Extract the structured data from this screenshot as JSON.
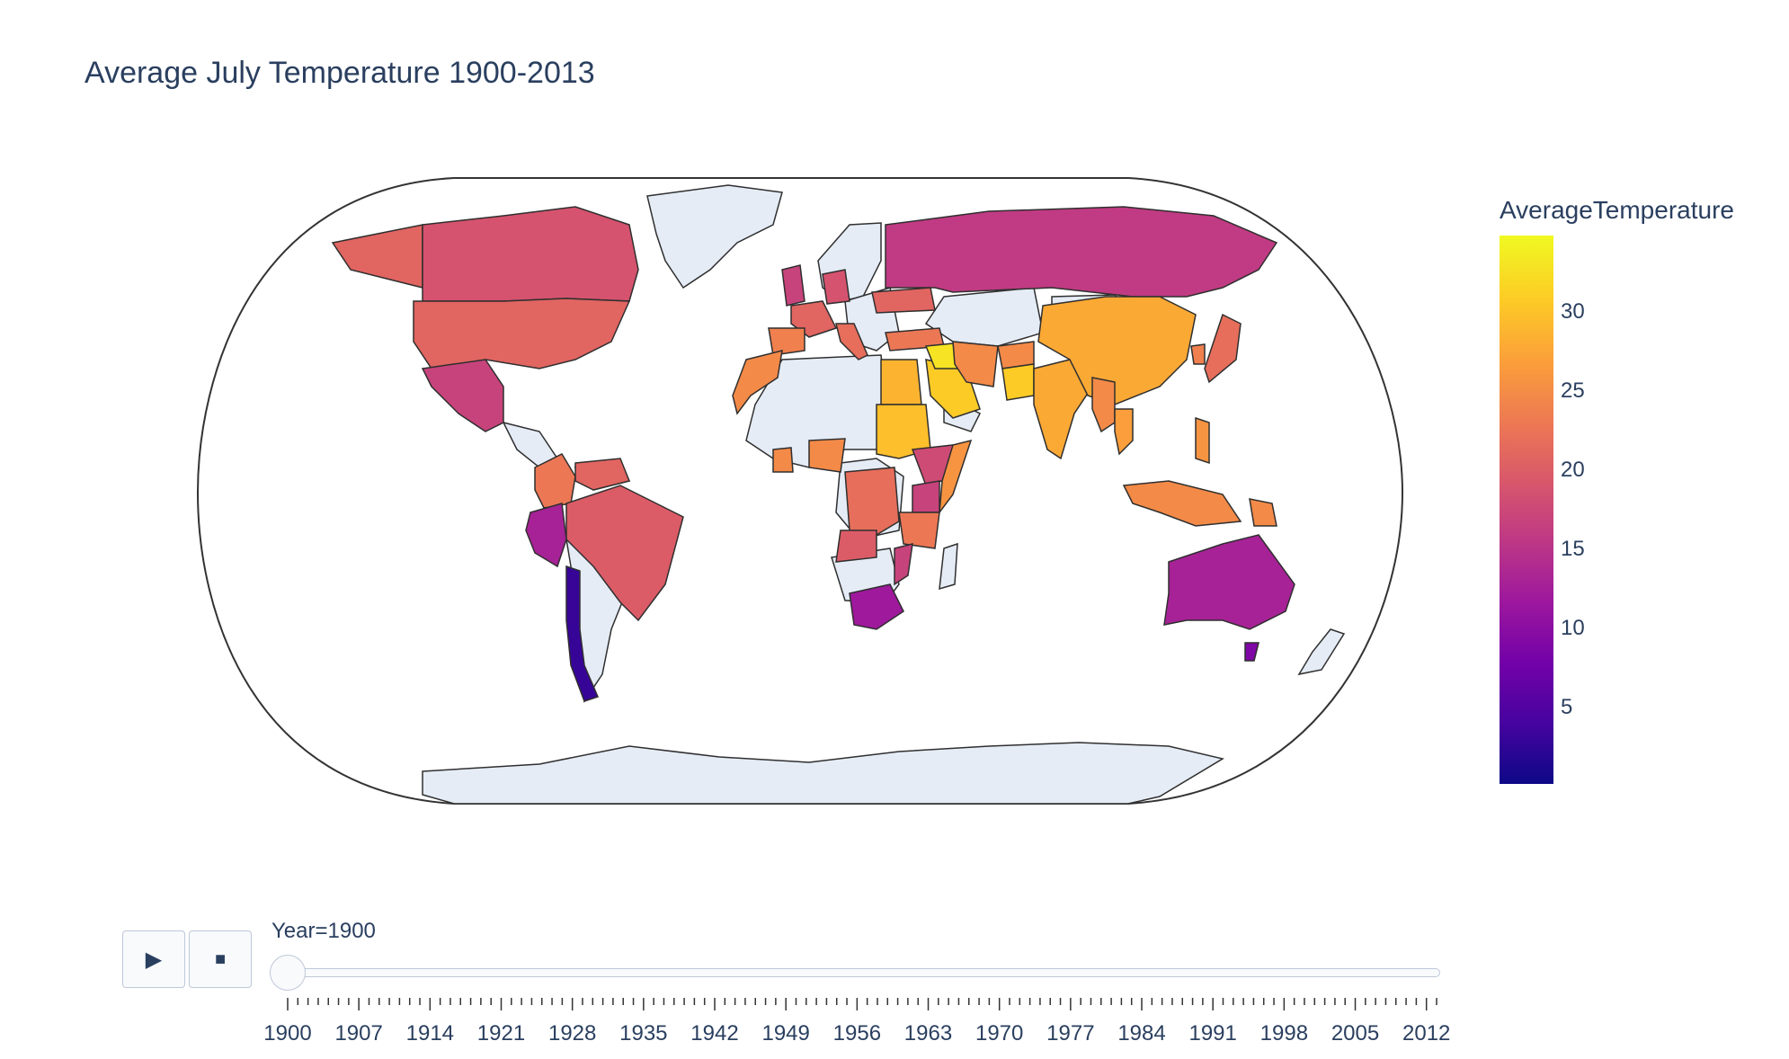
{
  "title": "Average July Temperature 1900-2013",
  "colorbar": {
    "title": "AverageTemperature",
    "range": [
      0.2,
      34.8
    ],
    "ticks": [
      5,
      10,
      15,
      20,
      25,
      30
    ],
    "colorscale": [
      "#0d0887",
      "#46039f",
      "#7201a8",
      "#9c179e",
      "#bd3786",
      "#d8576b",
      "#ed7953",
      "#fb9f3a",
      "#fdca26",
      "#f0f921"
    ]
  },
  "colors": {
    "nodata": "#e5ecf6",
    "border": "#2f2f2f",
    "text": "#2a3f5f"
  },
  "projection": "natural earth",
  "controls": {
    "play_icon": "play-icon",
    "stop_icon": "stop-icon",
    "current_label": "Year=1900",
    "current_year": 1900,
    "range": [
      1900,
      2013
    ],
    "tick_labels": [
      "1900",
      "1907",
      "1914",
      "1921",
      "1928",
      "1935",
      "1942",
      "1949",
      "1956",
      "1963",
      "1970",
      "1977",
      "1984",
      "1991",
      "1998",
      "2005",
      "2012"
    ]
  },
  "map_data": [
    {
      "country": "Canada",
      "value": 19
    },
    {
      "country": "Alaska (United States)",
      "value": 21
    },
    {
      "country": "United States",
      "value": 21
    },
    {
      "country": "Mexico",
      "value": 17
    },
    {
      "country": "Colombia",
      "value": 23
    },
    {
      "country": "Venezuela",
      "value": 21
    },
    {
      "country": "Brazil",
      "value": 20
    },
    {
      "country": "Peru",
      "value": 13
    },
    {
      "country": "Chile",
      "value": 3
    },
    {
      "country": "United Kingdom",
      "value": 17
    },
    {
      "country": "France",
      "value": 21
    },
    {
      "country": "Spain",
      "value": 24
    },
    {
      "country": "Italy",
      "value": 22
    },
    {
      "country": "Germany",
      "value": 19
    },
    {
      "country": "Ukraine",
      "value": 21
    },
    {
      "country": "Turkey",
      "value": 23
    },
    {
      "country": "Russia",
      "value": 16
    },
    {
      "country": "Morocco",
      "value": 25
    },
    {
      "country": "Egypt",
      "value": 29
    },
    {
      "country": "Sudan",
      "value": 30
    },
    {
      "country": "Saudi Arabia",
      "value": 31
    },
    {
      "country": "Iraq",
      "value": 33
    },
    {
      "country": "Iran",
      "value": 25
    },
    {
      "country": "Afghanistan",
      "value": 25
    },
    {
      "country": "Pakistan",
      "value": 31
    },
    {
      "country": "India",
      "value": 28
    },
    {
      "country": "China",
      "value": 28
    },
    {
      "country": "Japan",
      "value": 22
    },
    {
      "country": "South Korea",
      "value": 24
    },
    {
      "country": "Myanmar",
      "value": 25
    },
    {
      "country": "Thailand",
      "value": 27
    },
    {
      "country": "Indonesia",
      "value": 25
    },
    {
      "country": "Philippines",
      "value": 26
    },
    {
      "country": "Papua New Guinea",
      "value": 25
    },
    {
      "country": "Ethiopia",
      "value": 18
    },
    {
      "country": "Kenya",
      "value": 17
    },
    {
      "country": "Somalia",
      "value": 26
    },
    {
      "country": "Tanzania",
      "value": 23
    },
    {
      "country": "Nigeria",
      "value": 25
    },
    {
      "country": "Ghana",
      "value": 25
    },
    {
      "country": "Democratic Republic of the Congo",
      "value": 22
    },
    {
      "country": "Angola",
      "value": 20
    },
    {
      "country": "Mozambique",
      "value": 17
    },
    {
      "country": "South Africa",
      "value": 12
    },
    {
      "country": "Australia",
      "value": 13
    },
    {
      "country": "Tasmania (Australia)",
      "value": 9
    }
  ]
}
